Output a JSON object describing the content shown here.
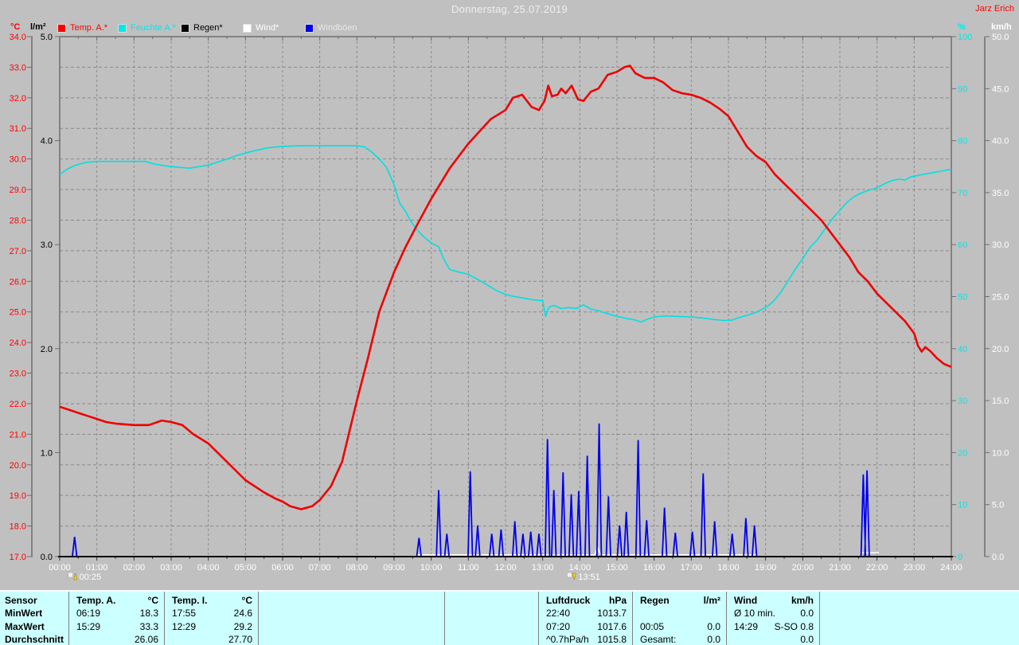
{
  "title": "Donnerstag, 25.07.2019",
  "watermark": "Jarz Erich",
  "legend": [
    {
      "label": "Temp. A.*",
      "swatch": "#ff0000",
      "text_color": "#ff0000"
    },
    {
      "label": "Feuchte A.*",
      "swatch": "#00e8e8",
      "text_color": "#00e8e8"
    },
    {
      "label": "Regen*",
      "swatch": "#000000",
      "text_color": "#000000"
    },
    {
      "label": "Wind*",
      "swatch": "#ffffff",
      "text_color": "#ffffff"
    },
    {
      "label": "Windböen",
      "swatch": "#0000ee",
      "text_color": "#e6e6e6"
    }
  ],
  "chart_data": {
    "type": "line",
    "title": "Donnerstag, 25.07.2019",
    "grid": true,
    "axes": {
      "temp": {
        "label": "°C",
        "color": "#ff0000",
        "min": 17,
        "max": 34,
        "step": 1,
        "decimals": 1
      },
      "rain": {
        "label": "l/m²",
        "color": "#000000",
        "min": 0,
        "max": 5,
        "step": 1,
        "decimals": 1
      },
      "humidity": {
        "label": "%",
        "color": "#00e8e8",
        "min": 0,
        "max": 100,
        "step": 10,
        "decimals": 0
      },
      "wind": {
        "label": "km/h",
        "color": "#ffffff",
        "min": 0,
        "max": 50,
        "step": 5,
        "decimals": 1
      },
      "x": {
        "start": 0,
        "end": 24,
        "labels": [
          "00:00",
          "01:00",
          "02:00",
          "03:00",
          "04:00",
          "05:00",
          "06:00",
          "07:00",
          "08:00",
          "09:00",
          "10:00",
          "11:00",
          "12:00",
          "13:00",
          "14:00",
          "15:00",
          "16:00",
          "17:00",
          "18:00",
          "19:00",
          "20:00",
          "21:00",
          "22:00",
          "23:00",
          "24:00"
        ]
      }
    },
    "series": {
      "temp_a": {
        "name": "Temp. A.*",
        "color": "#ee0000",
        "unit": "°C",
        "points": [
          [
            0,
            21.9
          ],
          [
            0.25,
            21.8
          ],
          [
            0.5,
            21.7
          ],
          [
            0.75,
            21.6
          ],
          [
            1,
            21.5
          ],
          [
            1.25,
            21.4
          ],
          [
            1.5,
            21.35
          ],
          [
            2,
            21.3
          ],
          [
            2.4,
            21.3
          ],
          [
            2.75,
            21.45
          ],
          [
            3,
            21.4
          ],
          [
            3.3,
            21.3
          ],
          [
            3.6,
            21.0
          ],
          [
            4,
            20.7
          ],
          [
            4.5,
            20.1
          ],
          [
            5,
            19.5
          ],
          [
            5.5,
            19.1
          ],
          [
            5.8,
            18.9
          ],
          [
            6,
            18.8
          ],
          [
            6.2,
            18.65
          ],
          [
            6.5,
            18.55
          ],
          [
            6.8,
            18.65
          ],
          [
            7,
            18.85
          ],
          [
            7.3,
            19.3
          ],
          [
            7.6,
            20.1
          ],
          [
            8,
            22.1
          ],
          [
            8.3,
            23.5
          ],
          [
            8.6,
            25.0
          ],
          [
            9,
            26.3
          ],
          [
            9.3,
            27.1
          ],
          [
            9.6,
            27.8
          ],
          [
            10,
            28.7
          ],
          [
            10.5,
            29.7
          ],
          [
            11,
            30.5
          ],
          [
            11.3,
            30.9
          ],
          [
            11.6,
            31.3
          ],
          [
            12,
            31.6
          ],
          [
            12.2,
            32.0
          ],
          [
            12.45,
            32.1
          ],
          [
            12.7,
            31.7
          ],
          [
            12.9,
            31.6
          ],
          [
            13.05,
            31.9
          ],
          [
            13.15,
            32.4
          ],
          [
            13.25,
            32.05
          ],
          [
            13.4,
            32.1
          ],
          [
            13.5,
            32.3
          ],
          [
            13.62,
            32.15
          ],
          [
            13.78,
            32.4
          ],
          [
            13.95,
            31.95
          ],
          [
            14.1,
            31.9
          ],
          [
            14.3,
            32.2
          ],
          [
            14.5,
            32.3
          ],
          [
            14.75,
            32.75
          ],
          [
            15,
            32.85
          ],
          [
            15.2,
            33.0
          ],
          [
            15.35,
            33.05
          ],
          [
            15.5,
            32.8
          ],
          [
            15.75,
            32.65
          ],
          [
            16,
            32.65
          ],
          [
            16.25,
            32.5
          ],
          [
            16.5,
            32.25
          ],
          [
            16.75,
            32.15
          ],
          [
            17,
            32.1
          ],
          [
            17.25,
            32.0
          ],
          [
            17.5,
            31.85
          ],
          [
            17.75,
            31.65
          ],
          [
            18,
            31.4
          ],
          [
            18.25,
            30.9
          ],
          [
            18.5,
            30.4
          ],
          [
            18.75,
            30.1
          ],
          [
            19,
            29.9
          ],
          [
            19.25,
            29.5
          ],
          [
            19.5,
            29.2
          ],
          [
            19.75,
            28.9
          ],
          [
            20,
            28.6
          ],
          [
            20.25,
            28.3
          ],
          [
            20.5,
            28.0
          ],
          [
            20.75,
            27.6
          ],
          [
            21,
            27.2
          ],
          [
            21.25,
            26.8
          ],
          [
            21.5,
            26.3
          ],
          [
            21.75,
            26.0
          ],
          [
            22,
            25.6
          ],
          [
            22.25,
            25.3
          ],
          [
            22.5,
            25.0
          ],
          [
            22.75,
            24.7
          ],
          [
            23,
            24.3
          ],
          [
            23.1,
            23.9
          ],
          [
            23.2,
            23.7
          ],
          [
            23.3,
            23.85
          ],
          [
            23.45,
            23.7
          ],
          [
            23.6,
            23.5
          ],
          [
            23.8,
            23.3
          ],
          [
            24,
            23.2
          ]
        ]
      },
      "feuchte_a": {
        "name": "Feuchte A.*",
        "color": "#00e0e0",
        "unit": "%",
        "points": [
          [
            0,
            73.5
          ],
          [
            0.2,
            74.5
          ],
          [
            0.4,
            75.2
          ],
          [
            0.7,
            75.8
          ],
          [
            1,
            76
          ],
          [
            1.5,
            76
          ],
          [
            2,
            76
          ],
          [
            2.3,
            76
          ],
          [
            2.6,
            75.4
          ],
          [
            3,
            75
          ],
          [
            3.5,
            74.7
          ],
          [
            4,
            75.3
          ],
          [
            4.4,
            76.2
          ],
          [
            4.8,
            77.2
          ],
          [
            5.2,
            78
          ],
          [
            5.6,
            78.6
          ],
          [
            6,
            78.9
          ],
          [
            6.5,
            79
          ],
          [
            7,
            79
          ],
          [
            7.5,
            79
          ],
          [
            8,
            79
          ],
          [
            8.2,
            78.8
          ],
          [
            8.4,
            77.8
          ],
          [
            8.6,
            76.5
          ],
          [
            8.8,
            74.8
          ],
          [
            9,
            71.5
          ],
          [
            9.15,
            68
          ],
          [
            9.3,
            66.5
          ],
          [
            9.45,
            64.5
          ],
          [
            9.6,
            63
          ],
          [
            9.8,
            61.5
          ],
          [
            10,
            60.3
          ],
          [
            10.2,
            59.6
          ],
          [
            10.35,
            57
          ],
          [
            10.5,
            55.2
          ],
          [
            10.7,
            54.8
          ],
          [
            11,
            54.3
          ],
          [
            11.2,
            53.5
          ],
          [
            11.5,
            52.3
          ],
          [
            11.75,
            51.2
          ],
          [
            12,
            50.4
          ],
          [
            12.25,
            50
          ],
          [
            12.5,
            49.7
          ],
          [
            12.75,
            49.4
          ],
          [
            13,
            49.2
          ],
          [
            13.08,
            46.2
          ],
          [
            13.17,
            48
          ],
          [
            13.3,
            48.3
          ],
          [
            13.5,
            47.7
          ],
          [
            13.7,
            47.9
          ],
          [
            13.9,
            47.7
          ],
          [
            14.1,
            48.4
          ],
          [
            14.3,
            47.6
          ],
          [
            14.5,
            47.3
          ],
          [
            14.75,
            46.7
          ],
          [
            15,
            46.2
          ],
          [
            15.25,
            45.8
          ],
          [
            15.5,
            45.5
          ],
          [
            15.65,
            45.1
          ],
          [
            15.8,
            45.6
          ],
          [
            16,
            46.1
          ],
          [
            16.3,
            46.3
          ],
          [
            16.6,
            46.2
          ],
          [
            17,
            46.1
          ],
          [
            17.3,
            45.9
          ],
          [
            17.6,
            45.6
          ],
          [
            17.9,
            45.4
          ],
          [
            18.1,
            45.5
          ],
          [
            18.3,
            46
          ],
          [
            18.5,
            46.4
          ],
          [
            18.75,
            47
          ],
          [
            19,
            47.9
          ],
          [
            19.2,
            49
          ],
          [
            19.4,
            50.7
          ],
          [
            19.6,
            53
          ],
          [
            19.8,
            55.3
          ],
          [
            20,
            57.3
          ],
          [
            20.2,
            59.5
          ],
          [
            20.4,
            61
          ],
          [
            20.6,
            63
          ],
          [
            20.8,
            65
          ],
          [
            21,
            66.6
          ],
          [
            21.2,
            68.2
          ],
          [
            21.4,
            69.3
          ],
          [
            21.6,
            70
          ],
          [
            21.8,
            70.5
          ],
          [
            22,
            70.9
          ],
          [
            22.2,
            71.7
          ],
          [
            22.4,
            72.3
          ],
          [
            22.6,
            72.6
          ],
          [
            22.75,
            72.4
          ],
          [
            22.9,
            73
          ],
          [
            23.1,
            73.3
          ],
          [
            23.4,
            73.7
          ],
          [
            23.7,
            74.1
          ],
          [
            24,
            74.5
          ]
        ]
      },
      "regen": {
        "name": "Regen*",
        "color": "#000000",
        "unit": "l/m²",
        "points": [
          [
            0,
            0
          ],
          [
            24,
            0
          ]
        ]
      },
      "wind": {
        "name": "Wind*",
        "color": "#ffffff",
        "unit": "km/h",
        "segments": [
          [
            [
              9.6,
              0.1
            ],
            [
              14.4,
              0.1
            ],
            [
              14.48,
              0.8
            ],
            [
              14.56,
              0.1
            ],
            [
              18.75,
              0.1
            ]
          ],
          [
            [
              21.6,
              0.3
            ],
            [
              22.05,
              0.3
            ]
          ]
        ]
      },
      "windboeen": {
        "name": "Windböen",
        "color": "#0000ee",
        "unit": "km/h",
        "spike_halfwidth_hours": 0.06,
        "spikes": [
          [
            0.4,
            1.9
          ],
          [
            9.67,
            1.8
          ],
          [
            10.2,
            6.4
          ],
          [
            10.42,
            2.2
          ],
          [
            11.05,
            8.2
          ],
          [
            11.25,
            3.0
          ],
          [
            11.63,
            2.2
          ],
          [
            11.88,
            2.6
          ],
          [
            12.25,
            3.4
          ],
          [
            12.47,
            2.2
          ],
          [
            12.68,
            2.4
          ],
          [
            12.9,
            2.2
          ],
          [
            13.13,
            11.3
          ],
          [
            13.3,
            6.4
          ],
          [
            13.55,
            8.1
          ],
          [
            13.77,
            6.0
          ],
          [
            13.97,
            6.3
          ],
          [
            14.2,
            9.7
          ],
          [
            14.52,
            12.8
          ],
          [
            14.77,
            5.8
          ],
          [
            15.07,
            3.0
          ],
          [
            15.25,
            4.3
          ],
          [
            15.57,
            11.2
          ],
          [
            15.8,
            3.5
          ],
          [
            16.28,
            4.7
          ],
          [
            16.57,
            2.3
          ],
          [
            17.03,
            2.4
          ],
          [
            17.32,
            8.0
          ],
          [
            17.63,
            3.4
          ],
          [
            18.1,
            2.2
          ],
          [
            18.47,
            3.7
          ],
          [
            18.7,
            3.0
          ],
          [
            21.63,
            7.9
          ],
          [
            21.73,
            8.3
          ]
        ]
      }
    },
    "markers": [
      {
        "time": "00:25",
        "hour": 0.42,
        "direction": "up"
      },
      {
        "time": "13:51",
        "hour": 13.85,
        "direction": "down"
      }
    ]
  },
  "table": {
    "row_labels": [
      "Sensor",
      "MinWert",
      "MaxWert",
      "Durchschnitt"
    ],
    "columns": [
      {
        "name": "Temp. A.",
        "unit": "°C",
        "rows": [
          [
            "06:19",
            "18.3"
          ],
          [
            "15:29",
            "33.3"
          ],
          [
            "",
            "26.06"
          ]
        ]
      },
      {
        "name": "Temp. I.",
        "unit": "°C",
        "rows": [
          [
            "17:55",
            "24.6"
          ],
          [
            "12:29",
            "29.2"
          ],
          [
            "",
            "27.70"
          ]
        ]
      },
      {
        "name": "",
        "unit": "",
        "rows": [
          [
            "",
            ""
          ],
          [
            "",
            ""
          ],
          [
            "",
            ""
          ]
        ]
      },
      {
        "name": "",
        "unit": "",
        "rows": [
          [
            "",
            ""
          ],
          [
            "",
            ""
          ],
          [
            "",
            ""
          ]
        ]
      },
      {
        "name": "Luftdruck",
        "unit": "hPa",
        "rows": [
          [
            "22:40",
            "1013.7"
          ],
          [
            "07:20",
            "1017.6"
          ],
          [
            "^0.7hPa/h",
            "1015.8"
          ]
        ]
      },
      {
        "name": "Regen",
        "unit": "l/m²",
        "rows": [
          [
            "",
            ""
          ],
          [
            "00:05",
            "0.0"
          ],
          [
            "Gesamt:",
            "0.0"
          ]
        ]
      },
      {
        "name": "Wind",
        "unit": "km/h",
        "rows": [
          [
            "Ø 10 min.",
            "0.0"
          ],
          [
            "14:29",
            "S-SO 0.8"
          ],
          [
            "",
            "0.0"
          ]
        ]
      }
    ]
  }
}
